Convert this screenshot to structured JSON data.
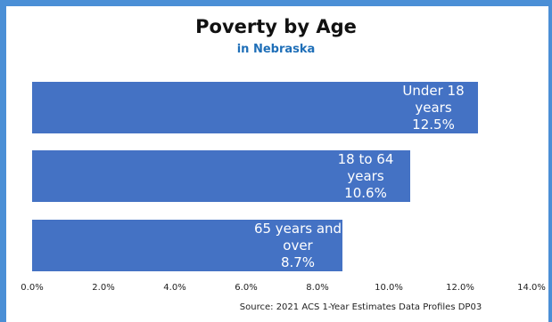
{
  "chart_data": {
    "type": "bar",
    "orientation": "horizontal",
    "title": "Poverty by Age",
    "subtitle": "in Nebraska",
    "source": "Source: 2021 ACS 1-Year Estimates Data Profiles DP03",
    "categories": [
      "Under 18 years",
      "18 to 64 years",
      "65 years and over"
    ],
    "category_lines": [
      [
        "Under 18",
        "years"
      ],
      [
        "18 to 64",
        "years"
      ],
      [
        "65 years and",
        "over"
      ]
    ],
    "values": [
      12.5,
      10.6,
      8.7
    ],
    "value_labels": [
      "12.5%",
      "10.6%",
      "8.7%"
    ],
    "bar_color": "#4472c4",
    "label_color": "#ffffff",
    "xlim": [
      0,
      14
    ],
    "xticks": [
      0,
      2,
      4,
      6,
      8,
      10,
      12,
      14
    ],
    "xtick_labels": [
      "0.0%",
      "2.0%",
      "4.0%",
      "6.0%",
      "8.0%",
      "10.0%",
      "12.0%",
      "14.0%"
    ],
    "grid": false,
    "legend": "none"
  }
}
